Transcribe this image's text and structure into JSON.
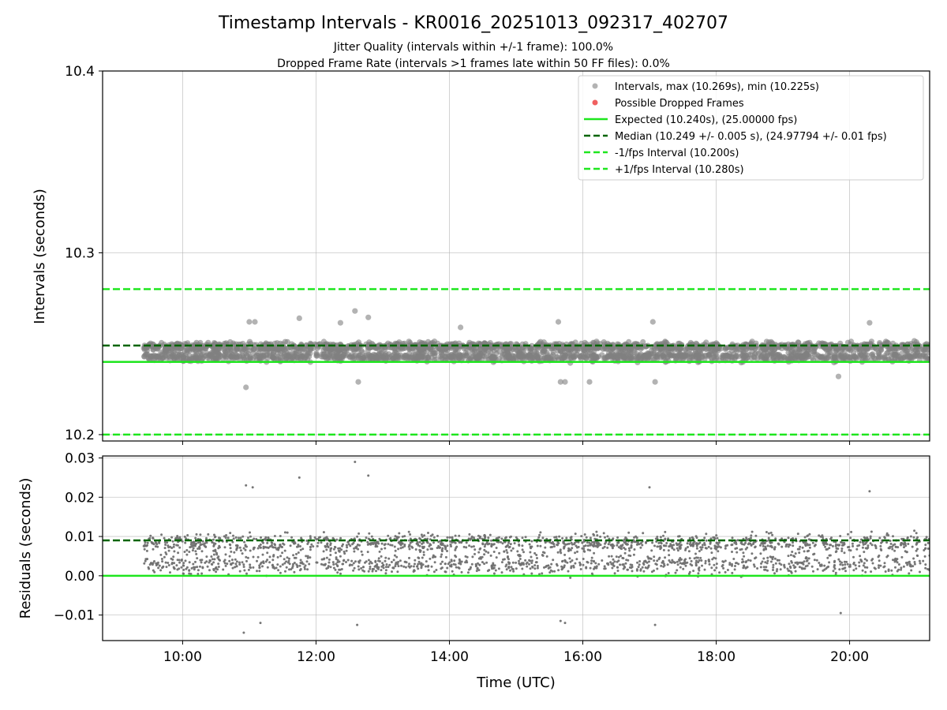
{
  "figure": {
    "title": "Timestamp Intervals - KR0016_20251013_092317_402707",
    "subtitle_1": "Jitter Quality (intervals within +/-1 frame): 100.0%",
    "subtitle_2": "Dropped Frame Rate (intervals >1 frames late within 50 FF files): 0.0%"
  },
  "chart_data": [
    {
      "type": "scatter",
      "ylabel": "Intervals (seconds)",
      "xlabel": "",
      "xlim": [
        "08:48",
        "21:12"
      ],
      "ylim": [
        10.1965,
        10.4
      ],
      "yticks": [
        "10.2",
        "10.3",
        "10.4"
      ],
      "xticks": [
        "10:00",
        "12:00",
        "14:00",
        "16:00",
        "18:00",
        "20:00"
      ],
      "grid": true,
      "legend_placement": "top-right",
      "data_time_range": [
        "09:25",
        "21:12"
      ],
      "series": [
        {
          "name": "Intervals, max (10.269s), min (10.225s)",
          "kind": "points",
          "color": "#808080",
          "center": 10.2455,
          "max": 10.269,
          "min": 10.225,
          "outliers": [
            {
              "x": "10:57",
              "y": 10.226
            },
            {
              "x": "11:00",
              "y": 10.262
            },
            {
              "x": "11:05",
              "y": 10.262
            },
            {
              "x": "11:45",
              "y": 10.264
            },
            {
              "x": "12:22",
              "y": 10.2615
            },
            {
              "x": "12:35",
              "y": 10.268
            },
            {
              "x": "12:38",
              "y": 10.229
            },
            {
              "x": "12:47",
              "y": 10.2645
            },
            {
              "x": "14:10",
              "y": 10.259
            },
            {
              "x": "15:38",
              "y": 10.262
            },
            {
              "x": "15:40",
              "y": 10.229
            },
            {
              "x": "15:44",
              "y": 10.229
            },
            {
              "x": "16:06",
              "y": 10.229
            },
            {
              "x": "17:03",
              "y": 10.262
            },
            {
              "x": "17:05",
              "y": 10.229
            },
            {
              "x": "19:50",
              "y": 10.232
            },
            {
              "x": "20:18",
              "y": 10.2615
            }
          ]
        },
        {
          "name": "Possible Dropped Frames",
          "kind": "points",
          "color": "#f06060"
        },
        {
          "name": "Expected (10.240s), (25.00000 fps)",
          "kind": "hline",
          "y": 10.24,
          "color": "#1ee61e",
          "dash": "solid"
        },
        {
          "name": "Median (10.249 +/- 0.005 s), (24.97794 +/- 0.01 fps)",
          "kind": "hline",
          "y": 10.249,
          "color": "#006400",
          "dash": "dashed"
        },
        {
          "name": "-1/fps Interval (10.200s)",
          "kind": "hline",
          "y": 10.2,
          "color": "#1ee61e",
          "dash": "dashed"
        },
        {
          "name": "+1/fps Interval (10.280s)",
          "kind": "hline",
          "y": 10.28,
          "color": "#1ee61e",
          "dash": "dashed"
        }
      ]
    },
    {
      "type": "scatter",
      "ylabel": "Residuals (seconds)",
      "xlabel": "Time (UTC)",
      "xlim": [
        "08:48",
        "21:12"
      ],
      "ylim": [
        -0.0165,
        0.0305
      ],
      "yticks": [
        "−0.01",
        "0.00",
        "0.01",
        "0.02",
        "0.03"
      ],
      "xticks": [
        "10:00",
        "12:00",
        "14:00",
        "16:00",
        "18:00",
        "20:00"
      ],
      "grid": true,
      "data_time_range": [
        "09:25",
        "21:12"
      ],
      "series": [
        {
          "name": "residuals",
          "kind": "points",
          "color": "#707070",
          "center": 0.0055,
          "max": 0.029,
          "min": -0.0145,
          "outliers": [
            {
              "x": "10:55",
              "y": -0.0145
            },
            {
              "x": "10:57",
              "y": 0.023
            },
            {
              "x": "11:03",
              "y": 0.0225
            },
            {
              "x": "11:45",
              "y": 0.025
            },
            {
              "x": "12:35",
              "y": 0.029
            },
            {
              "x": "12:37",
              "y": -0.0125
            },
            {
              "x": "12:47",
              "y": 0.0255
            },
            {
              "x": "15:40",
              "y": -0.0115
            },
            {
              "x": "15:44",
              "y": -0.012
            },
            {
              "x": "17:05",
              "y": -0.0125
            },
            {
              "x": "17:00",
              "y": 0.0225
            },
            {
              "x": "20:18",
              "y": 0.0215
            },
            {
              "x": "19:52",
              "y": -0.0095
            },
            {
              "x": "11:10",
              "y": -0.012
            }
          ]
        },
        {
          "name": "median offset",
          "kind": "hline",
          "y": 0.009,
          "color": "#006400",
          "dash": "dashed"
        },
        {
          "name": "zero",
          "kind": "hline",
          "y": 0.0,
          "color": "#1ee61e",
          "dash": "solid"
        }
      ]
    }
  ]
}
